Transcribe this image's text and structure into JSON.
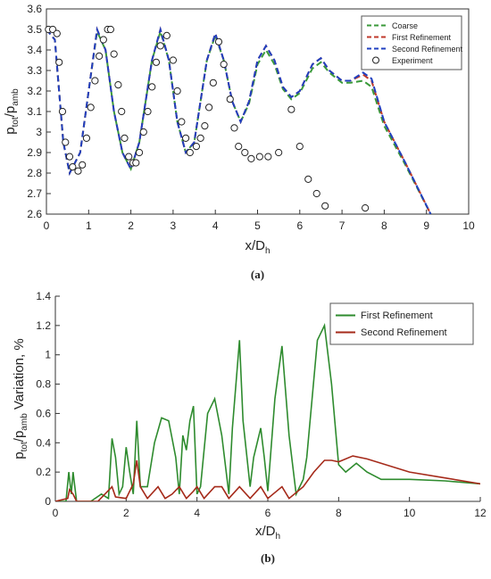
{
  "chart_data": [
    {
      "type": "line",
      "caption": "(a)",
      "xlabel": [
        "x/D",
        "h"
      ],
      "ylabel": [
        "p",
        "tot",
        "/p",
        "amb"
      ],
      "xlim": [
        0,
        10
      ],
      "xticks": [
        0,
        1,
        2,
        3,
        4,
        5,
        6,
        7,
        8,
        9,
        10
      ],
      "ylim": [
        2.6,
        3.6
      ],
      "yticks": [
        2.6,
        2.7,
        2.8,
        2.9,
        3,
        3.1,
        3.2,
        3.3,
        3.4,
        3.5,
        3.6
      ],
      "legend": "upper right",
      "frame": true,
      "series": [
        {
          "name": "Coarse",
          "color": "#3a9a3a",
          "style": "dashed",
          "x": [
            0,
            0.2,
            0.4,
            0.55,
            0.8,
            1.0,
            1.2,
            1.4,
            1.6,
            1.8,
            2.0,
            2.2,
            2.5,
            2.7,
            2.9,
            3.1,
            3.3,
            3.5,
            3.8,
            4.0,
            4.2,
            4.4,
            4.6,
            4.8,
            5.0,
            5.2,
            5.4,
            5.6,
            5.8,
            6.0,
            6.3,
            6.5,
            6.7,
            7.0,
            7.2,
            7.5,
            7.7,
            8.0,
            8.5,
            9.1
          ],
          "values": [
            3.5,
            3.45,
            2.95,
            2.8,
            2.9,
            3.2,
            3.49,
            3.4,
            3.1,
            2.9,
            2.82,
            2.95,
            3.35,
            3.49,
            3.35,
            3.05,
            2.9,
            2.95,
            3.35,
            3.47,
            3.35,
            3.15,
            3.05,
            3.14,
            3.33,
            3.4,
            3.33,
            3.21,
            3.16,
            3.19,
            3.31,
            3.34,
            3.29,
            3.24,
            3.24,
            3.25,
            3.22,
            3.03,
            2.84,
            2.6
          ]
        },
        {
          "name": "First Refinement",
          "color": "#c0392b",
          "style": "dashed",
          "x": [
            0,
            0.2,
            0.4,
            0.55,
            0.8,
            1.0,
            1.2,
            1.4,
            1.6,
            1.8,
            2.0,
            2.2,
            2.5,
            2.7,
            2.9,
            3.1,
            3.3,
            3.5,
            3.8,
            4.0,
            4.2,
            4.4,
            4.6,
            4.8,
            5.0,
            5.2,
            5.4,
            5.6,
            5.8,
            6.0,
            6.3,
            6.5,
            6.7,
            7.0,
            7.2,
            7.5,
            7.7,
            8.0,
            8.5,
            9.1
          ],
          "values": [
            3.5,
            3.45,
            2.95,
            2.8,
            2.9,
            3.2,
            3.5,
            3.4,
            3.1,
            2.9,
            2.82,
            2.95,
            3.35,
            3.5,
            3.35,
            3.05,
            2.9,
            2.95,
            3.35,
            3.48,
            3.35,
            3.15,
            3.05,
            3.15,
            3.35,
            3.42,
            3.35,
            3.22,
            3.17,
            3.2,
            3.33,
            3.36,
            3.3,
            3.25,
            3.25,
            3.28,
            3.25,
            3.05,
            2.85,
            2.6
          ]
        },
        {
          "name": "Second Refinement",
          "color": "#2040c0",
          "style": "dashed",
          "x": [
            0,
            0.2,
            0.4,
            0.55,
            0.8,
            1.0,
            1.2,
            1.4,
            1.6,
            1.8,
            2.0,
            2.2,
            2.5,
            2.7,
            2.9,
            3.1,
            3.3,
            3.5,
            3.8,
            4.0,
            4.2,
            4.4,
            4.6,
            4.8,
            5.0,
            5.2,
            5.4,
            5.6,
            5.8,
            6.0,
            6.3,
            6.5,
            6.7,
            7.0,
            7.2,
            7.5,
            7.7,
            8.0,
            8.5,
            9.1
          ],
          "values": [
            3.5,
            3.45,
            2.95,
            2.8,
            2.9,
            3.2,
            3.5,
            3.4,
            3.1,
            2.9,
            2.82,
            2.95,
            3.35,
            3.5,
            3.35,
            3.05,
            2.9,
            2.95,
            3.35,
            3.48,
            3.35,
            3.15,
            3.05,
            3.15,
            3.35,
            3.42,
            3.35,
            3.22,
            3.17,
            3.2,
            3.33,
            3.36,
            3.3,
            3.25,
            3.25,
            3.29,
            3.26,
            3.05,
            2.85,
            2.6
          ]
        },
        {
          "name": "Experiment",
          "color": "#222222",
          "style": "markers",
          "x": [
            0.05,
            0.15,
            0.25,
            0.3,
            0.38,
            0.45,
            0.55,
            0.62,
            0.75,
            0.85,
            0.95,
            1.05,
            1.15,
            1.25,
            1.35,
            1.45,
            1.52,
            1.6,
            1.7,
            1.78,
            1.85,
            1.95,
            2.05,
            2.12,
            2.2,
            2.3,
            2.4,
            2.5,
            2.6,
            2.7,
            2.85,
            3.0,
            3.1,
            3.2,
            3.3,
            3.4,
            3.55,
            3.65,
            3.75,
            3.85,
            3.95,
            4.08,
            4.2,
            4.35,
            4.45,
            4.55,
            4.7,
            4.85,
            5.05,
            5.25,
            5.5,
            5.8,
            6.0,
            6.2,
            6.4,
            6.6,
            7.55
          ],
          "values": [
            3.5,
            3.5,
            3.48,
            3.34,
            3.1,
            2.95,
            2.88,
            2.83,
            2.81,
            2.84,
            2.97,
            3.12,
            3.25,
            3.37,
            3.45,
            3.5,
            3.5,
            3.38,
            3.23,
            3.1,
            2.97,
            2.88,
            2.85,
            2.85,
            2.9,
            3.0,
            3.1,
            3.22,
            3.34,
            3.42,
            3.47,
            3.35,
            3.2,
            3.05,
            2.97,
            2.9,
            2.93,
            2.97,
            3.03,
            3.12,
            3.24,
            3.44,
            3.33,
            3.16,
            3.02,
            2.93,
            2.9,
            2.87,
            2.88,
            2.88,
            2.9,
            3.11,
            2.93,
            2.77,
            2.7,
            2.64,
            2.63
          ]
        }
      ]
    },
    {
      "type": "line",
      "caption": "(b)",
      "xlabel": [
        "x/D",
        "h"
      ],
      "ylabel": [
        "p",
        "tot",
        "/p",
        "amb",
        " Variation, %"
      ],
      "xlim": [
        0,
        12
      ],
      "xticks": [
        0,
        2,
        4,
        6,
        8,
        10,
        12
      ],
      "ylim": [
        0,
        1.4
      ],
      "yticks": [
        0,
        0.2,
        0.4,
        0.6,
        0.8,
        1,
        1.2,
        1.4
      ],
      "legend": "upper right",
      "frame": false,
      "series": [
        {
          "name": "First Refinement",
          "color": "#2e8b2e",
          "style": "solid",
          "x": [
            0,
            0.3,
            0.38,
            0.45,
            0.5,
            0.6,
            1.0,
            1.3,
            1.5,
            1.6,
            1.7,
            1.8,
            1.9,
            2.0,
            2.1,
            2.2,
            2.3,
            2.4,
            2.6,
            2.8,
            3.0,
            3.2,
            3.4,
            3.5,
            3.6,
            3.7,
            3.8,
            3.9,
            4.0,
            4.1,
            4.3,
            4.5,
            4.7,
            4.9,
            5.0,
            5.2,
            5.3,
            5.5,
            5.6,
            5.8,
            5.9,
            6.0,
            6.2,
            6.4,
            6.6,
            6.8,
            7.0,
            7.1,
            7.4,
            7.6,
            7.8,
            8.0,
            8.2,
            8.5,
            8.8,
            9.2,
            10,
            11,
            12
          ],
          "values": [
            0,
            0,
            0.2,
            0.05,
            0.2,
            0,
            0,
            0.05,
            0.02,
            0.43,
            0.3,
            0.05,
            0.1,
            0.37,
            0.2,
            0.05,
            0.55,
            0.1,
            0.1,
            0.4,
            0.57,
            0.55,
            0.3,
            0.05,
            0.45,
            0.35,
            0.55,
            0.65,
            0.05,
            0.1,
            0.6,
            0.7,
            0.45,
            0.05,
            0.5,
            1.1,
            0.55,
            0.1,
            0.3,
            0.5,
            0.3,
            0.07,
            0.7,
            1.06,
            0.45,
            0.05,
            0.15,
            0.3,
            1.1,
            1.2,
            0.8,
            0.25,
            0.2,
            0.26,
            0.2,
            0.15,
            0.15,
            0.14,
            0.12
          ]
        },
        {
          "name": "Second Refinement",
          "color": "#a52a1a",
          "style": "solid",
          "x": [
            0,
            0.35,
            0.4,
            0.5,
            0.6,
            1.2,
            1.4,
            1.6,
            1.7,
            2.0,
            2.2,
            2.3,
            2.4,
            2.6,
            2.9,
            3.1,
            3.3,
            3.5,
            3.7,
            3.9,
            4.0,
            4.2,
            4.5,
            4.7,
            4.9,
            5.2,
            5.5,
            5.8,
            6.0,
            6.4,
            6.6,
            7.0,
            7.3,
            7.6,
            7.8,
            8.0,
            8.4,
            8.8,
            10,
            11,
            12
          ],
          "values": [
            0,
            0.02,
            0.08,
            0.05,
            0,
            0,
            0.05,
            0.1,
            0.03,
            0.02,
            0.12,
            0.28,
            0.1,
            0.02,
            0.1,
            0.02,
            0.05,
            0.1,
            0.02,
            0.07,
            0.1,
            0.02,
            0.1,
            0.1,
            0.02,
            0.1,
            0.02,
            0.1,
            0.02,
            0.1,
            0.02,
            0.1,
            0.2,
            0.28,
            0.28,
            0.27,
            0.31,
            0.29,
            0.2,
            0.16,
            0.12
          ]
        }
      ]
    }
  ]
}
